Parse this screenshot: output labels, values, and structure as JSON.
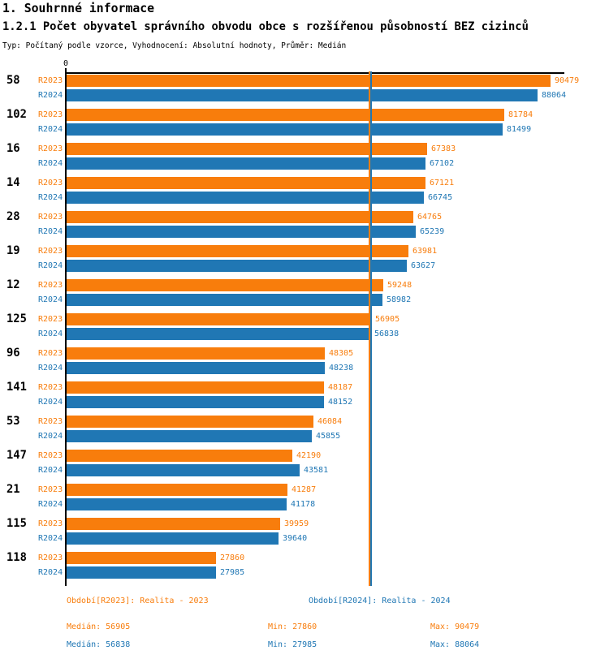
{
  "header": {
    "title": "1. Souhrnné informace",
    "subtitle": "1.2.1 Počet obyvatel správního obvodu obce s rozšířenou působností BEZ cizinců",
    "meta": "Typ: Počítaný podle vzorce, Vyhodnocení: Absolutní hodnoty, Průměr: Medián"
  },
  "axis": {
    "zero_label": "0"
  },
  "colors": {
    "r2023": "#F87D0C",
    "r2024": "#2077B4",
    "axis": "#000000",
    "background": "#FFFFFF"
  },
  "legend": {
    "r2023": "Období[R2023]: Realita - 2023",
    "r2024": "Období[R2024]: Realita - 2024"
  },
  "stats": {
    "r2023": {
      "median": "Medián: 56905",
      "min": "Min: 27860",
      "max": "Max: 90479"
    },
    "r2024": {
      "median": "Medián: 56838",
      "min": "Min: 27985",
      "max": "Max: 88064"
    }
  },
  "chart_data": {
    "type": "bar",
    "orientation": "horizontal",
    "title": "1.2.1 Počet obyvatel správního obvodu obce s rozšířenou působností BEZ cizinců",
    "categories": [
      "58",
      "102",
      "16",
      "14",
      "28",
      "19",
      "12",
      "125",
      "96",
      "141",
      "53",
      "147",
      "21",
      "115",
      "118"
    ],
    "series": [
      {
        "name": "R2023",
        "legend": "Období[R2023]: Realita - 2023",
        "color": "#F87D0C",
        "values": [
          90479,
          81784,
          67383,
          67121,
          64765,
          63981,
          59248,
          56905,
          48305,
          48187,
          46084,
          42190,
          41287,
          39959,
          27860
        ]
      },
      {
        "name": "R2024",
        "legend": "Období[R2024]: Realita - 2024",
        "color": "#2077B4",
        "values": [
          88064,
          81499,
          67102,
          66745,
          65239,
          63627,
          58982,
          56838,
          48238,
          48152,
          45855,
          43581,
          41178,
          39640,
          27985
        ]
      }
    ],
    "xlim": [
      0,
      93000
    ],
    "grid": false,
    "legend_position": "bottom",
    "median_lines": {
      "r2023": 56905,
      "r2024": 56838
    },
    "summary": {
      "r2023": {
        "median": 56905,
        "min": 27860,
        "max": 90479
      },
      "r2024": {
        "median": 56838,
        "min": 27985,
        "max": 88064
      }
    }
  }
}
